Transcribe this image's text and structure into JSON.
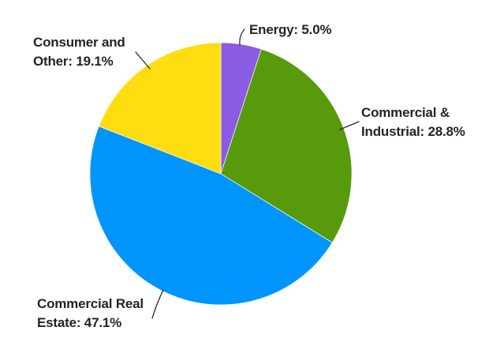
{
  "chart_data": {
    "type": "pie",
    "title": "",
    "unit": "%",
    "direction": "clockwise",
    "start_angle_deg": 0,
    "legend": "none",
    "label_style": "outside-with-leader-lines",
    "text_color": "#26222A",
    "slices": [
      {
        "name": "Energy",
        "value": 5.0,
        "color": "#8B5BE4",
        "label_lines": [
          "Energy: 5.0%"
        ]
      },
      {
        "name": "Commercial & Industrial",
        "value": 28.8,
        "color": "#579A0B",
        "label_lines": [
          "Commercial &",
          "Industrial: 28.8%"
        ]
      },
      {
        "name": "Commercial Real Estate",
        "value": 47.1,
        "color": "#0095FC",
        "label_lines": [
          "Commercial Real",
          "Estate: 47.1%"
        ]
      },
      {
        "name": "Consumer and Other",
        "value": 19.1,
        "color": "#FFDD10",
        "label_lines": [
          "Consumer and",
          "Other: 19.1%"
        ]
      }
    ]
  }
}
